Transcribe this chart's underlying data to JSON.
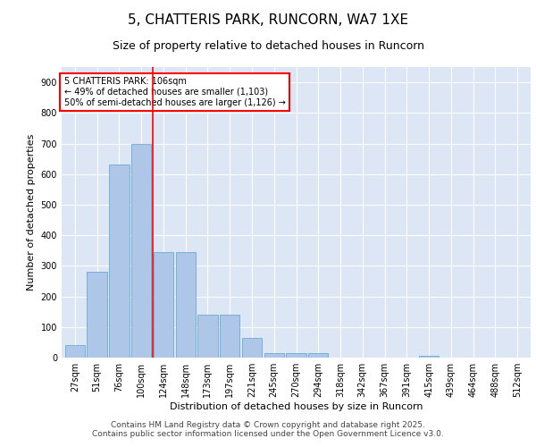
{
  "title": "5, CHATTERIS PARK, RUNCORN, WA7 1XE",
  "subtitle": "Size of property relative to detached houses in Runcorn",
  "xlabel": "Distribution of detached houses by size in Runcorn",
  "ylabel": "Number of detached properties",
  "categories": [
    "27sqm",
    "51sqm",
    "76sqm",
    "100sqm",
    "124sqm",
    "148sqm",
    "173sqm",
    "197sqm",
    "221sqm",
    "245sqm",
    "270sqm",
    "294sqm",
    "318sqm",
    "342sqm",
    "367sqm",
    "391sqm",
    "415sqm",
    "439sqm",
    "464sqm",
    "488sqm",
    "512sqm"
  ],
  "values": [
    40,
    280,
    630,
    700,
    345,
    345,
    140,
    140,
    65,
    15,
    15,
    15,
    0,
    0,
    0,
    0,
    5,
    0,
    0,
    0,
    0
  ],
  "bar_color": "#aec6e8",
  "bar_edge_color": "#6aaad4",
  "background_color": "#dce6f5",
  "grid_color": "#ffffff",
  "vline_x": 3.5,
  "vline_color": "red",
  "annotation_text": "5 CHATTERIS PARK: 106sqm\n← 49% of detached houses are smaller (1,103)\n50% of semi-detached houses are larger (1,126) →",
  "annotation_box_color": "white",
  "annotation_box_edge_color": "red",
  "ylim": [
    0,
    950
  ],
  "yticks": [
    0,
    100,
    200,
    300,
    400,
    500,
    600,
    700,
    800,
    900
  ],
  "footer_text": "Contains HM Land Registry data © Crown copyright and database right 2025.\nContains public sector information licensed under the Open Government Licence v3.0.",
  "title_fontsize": 11,
  "subtitle_fontsize": 9,
  "axis_label_fontsize": 8,
  "tick_fontsize": 7,
  "annotation_fontsize": 7,
  "footer_fontsize": 6.5
}
